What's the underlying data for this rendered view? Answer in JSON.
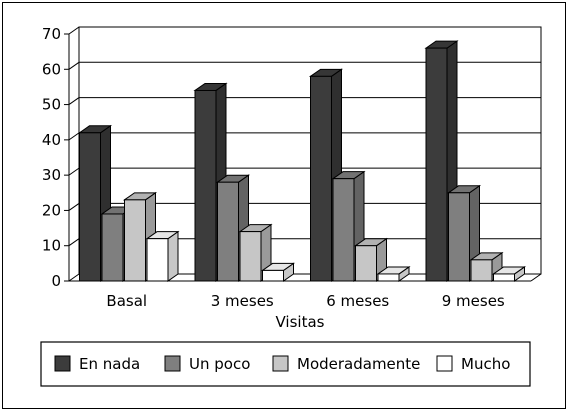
{
  "chart_data": {
    "type": "bar",
    "title": "",
    "xlabel": "Visitas",
    "ylabel": "",
    "ylim": [
      0,
      70
    ],
    "yticks": [
      0,
      10,
      20,
      30,
      40,
      50,
      60,
      70
    ],
    "grid": true,
    "legend_position": "bottom",
    "categories": [
      "Basal",
      "3 meses",
      "6 meses",
      "9 meses"
    ],
    "series": [
      {
        "name": "En nada",
        "color": "#3c3c3c",
        "values": [
          42,
          54,
          58,
          66
        ]
      },
      {
        "name": "Un poco",
        "color": "#7f7f7f",
        "values": [
          19,
          28,
          29,
          25
        ]
      },
      {
        "name": "Moderadamente",
        "color": "#c6c6c6",
        "values": [
          23,
          14,
          10,
          6
        ]
      },
      {
        "name": "Mucho",
        "color": "#ffffff",
        "values": [
          12,
          3,
          2,
          2
        ]
      }
    ]
  }
}
